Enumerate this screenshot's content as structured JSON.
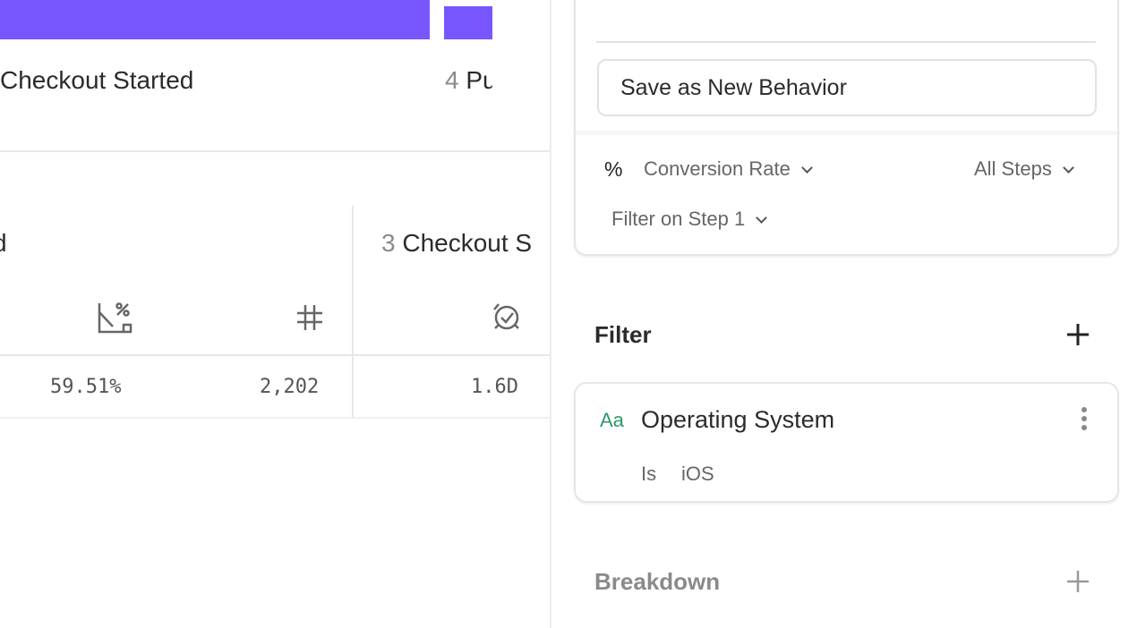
{
  "chart": {
    "bar_color": "#7856ff",
    "steps": [
      {
        "number": "",
        "label": "Checkout Started"
      },
      {
        "number": "4",
        "label": "Pu"
      }
    ]
  },
  "table": {
    "left_header_fragment": "d",
    "step3": {
      "number": "3",
      "label": "Checkout S"
    },
    "icons": [
      "conversion-rate-icon",
      "count-hash-icon",
      "time-to-convert-icon"
    ],
    "row": {
      "conversion": "59.51%",
      "count": "2,202",
      "time": "1.6D"
    }
  },
  "panel": {
    "save_behavior": "Save as New Behavior",
    "measure_symbol": "%",
    "measure": "Conversion Rate",
    "steps_scope": "All Steps",
    "filter_step": "Filter on Step 1",
    "filter_title": "Filter",
    "filter_item": {
      "type_icon": "Aa",
      "property": "Operating System",
      "operator": "Is",
      "value": "iOS"
    },
    "breakdown_title": "Breakdown",
    "accent_green": "#2a9a6a"
  }
}
